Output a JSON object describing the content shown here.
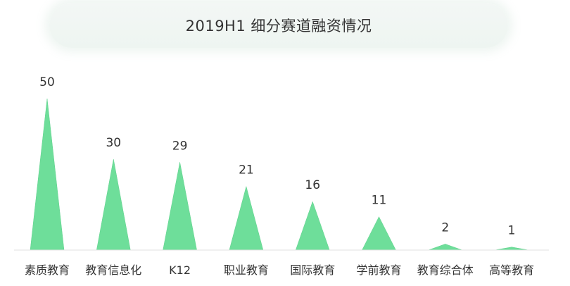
{
  "chart_data": {
    "type": "bar",
    "title": "2019H1 细分赛道融资情况",
    "categories": [
      "素质教育",
      "教育信息化",
      "K12",
      "职业教育",
      "国际教育",
      "学前教育",
      "教育综合体",
      "高等教育"
    ],
    "values": [
      50,
      30,
      29,
      21,
      16,
      11,
      2,
      1
    ],
    "ylim": [
      0,
      50
    ],
    "grid": false,
    "legend": "none",
    "bar_shape": "triangle",
    "colors": {
      "bar": "#6ede9a",
      "bar_edge": "#5fd18c",
      "axis": "#e2e2e2",
      "label": "#333333"
    }
  }
}
